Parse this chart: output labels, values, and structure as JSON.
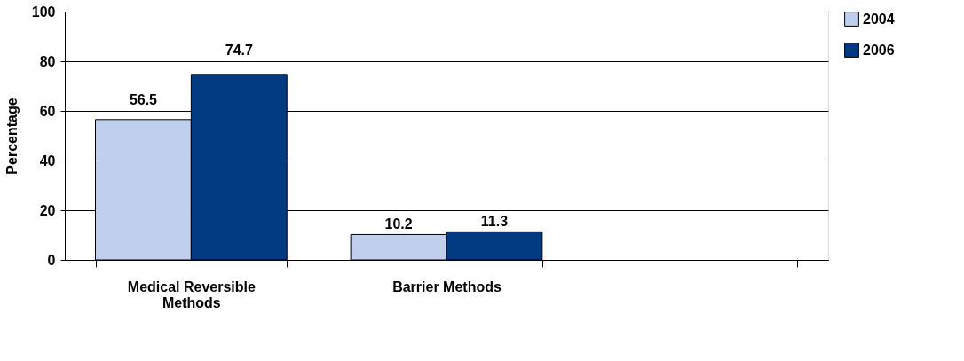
{
  "chart_data": {
    "type": "bar",
    "ylabel": "Percentage",
    "categories": [
      "Medical Reversible Methods",
      "Barrier Methods",
      null
    ],
    "series": [
      {
        "name": "2004",
        "color": "#c0cfee",
        "values": [
          56.5,
          10.2,
          null
        ]
      },
      {
        "name": "2006",
        "color": "#003a80",
        "values": [
          74.7,
          11.3,
          null
        ]
      }
    ],
    "ylim": [
      0,
      100
    ],
    "yticks": [
      0,
      20,
      40,
      60,
      80,
      100
    ],
    "grid": "y",
    "legend": "right",
    "data_labels": true
  }
}
